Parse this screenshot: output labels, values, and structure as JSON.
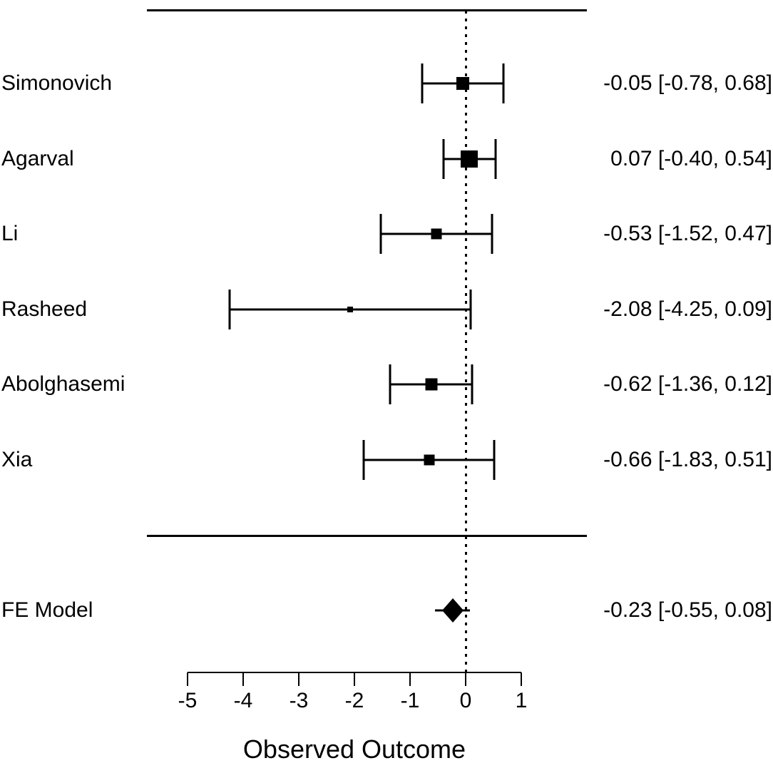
{
  "colors": {
    "foreground": "#000000",
    "background": "#ffffff"
  },
  "chart_data": {
    "type": "forest",
    "title": "",
    "xlabel": "Observed Outcome",
    "xlim": [
      -5,
      1
    ],
    "x_ticks": [
      "-5",
      "-4",
      "-3",
      "-2",
      "-1",
      "0",
      "1"
    ],
    "reference_line": 0,
    "grid": false,
    "studies": [
      {
        "label": "Simonovich",
        "estimate": -0.05,
        "ci_lower": -0.78,
        "ci_upper": 0.68,
        "annotation": "-0.05 [-0.78, 0.68]",
        "marker_size": 18
      },
      {
        "label": "Agarval",
        "estimate": 0.07,
        "ci_lower": -0.4,
        "ci_upper": 0.54,
        "annotation": "0.07 [-0.40, 0.54]",
        "marker_size": 24
      },
      {
        "label": "Li",
        "estimate": -0.53,
        "ci_lower": -1.52,
        "ci_upper": 0.47,
        "annotation": "-0.53 [-1.52, 0.47]",
        "marker_size": 15
      },
      {
        "label": "Rasheed",
        "estimate": -2.08,
        "ci_lower": -4.25,
        "ci_upper": 0.09,
        "annotation": "-2.08 [-4.25, 0.09]",
        "marker_size": 8
      },
      {
        "label": "Abolghasemi",
        "estimate": -0.62,
        "ci_lower": -1.36,
        "ci_upper": 0.12,
        "annotation": "-0.62 [-1.36, 0.12]",
        "marker_size": 17
      },
      {
        "label": "Xia",
        "estimate": -0.66,
        "ci_lower": -1.83,
        "ci_upper": 0.51,
        "annotation": "-0.66 [-1.83, 0.51]",
        "marker_size": 15
      }
    ],
    "summary": {
      "label": "FE Model",
      "estimate": -0.23,
      "ci_lower": -0.55,
      "ci_upper": 0.08,
      "annotation": "-0.23 [-0.55, 0.08]"
    }
  }
}
